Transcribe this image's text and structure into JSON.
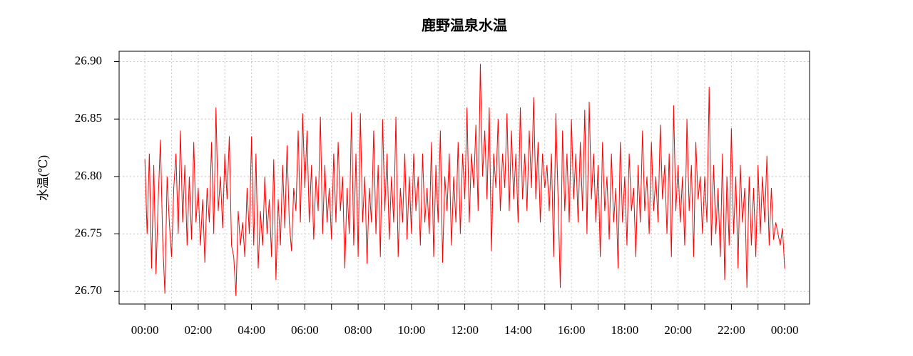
{
  "chart_data": {
    "type": "line",
    "title": "鹿野温泉水温",
    "ylabel": "水温(℃)",
    "color": "#ff0000",
    "grid": true,
    "xlim": [
      -58,
      1496
    ],
    "ylim": [
      26.689,
      26.909
    ],
    "xticks": [
      {
        "value": 0,
        "label": "00:00"
      },
      {
        "value": 120,
        "label": "02:00"
      },
      {
        "value": 240,
        "label": "04:00"
      },
      {
        "value": 360,
        "label": "06:00"
      },
      {
        "value": 480,
        "label": "08:00"
      },
      {
        "value": 600,
        "label": "10:00"
      },
      {
        "value": 720,
        "label": "12:00"
      },
      {
        "value": 840,
        "label": "14:00"
      },
      {
        "value": 960,
        "label": "16:00"
      },
      {
        "value": 1080,
        "label": "18:00"
      },
      {
        "value": 1200,
        "label": "20:00"
      },
      {
        "value": 1320,
        "label": "22:00"
      },
      {
        "value": 1440,
        "label": "00:00"
      }
    ],
    "xminor_ticks": [
      60,
      180,
      300,
      420,
      540,
      660,
      780,
      900,
      1020,
      1140,
      1260,
      1380
    ],
    "yticks": [
      {
        "value": 26.7,
        "label": "26.70"
      },
      {
        "value": 26.75,
        "label": "26.75"
      },
      {
        "value": 26.8,
        "label": "26.80"
      },
      {
        "value": 26.85,
        "label": "26.85"
      },
      {
        "value": 26.9,
        "label": "26.90"
      }
    ],
    "x": [
      0,
      5,
      10,
      15,
      20,
      25,
      30,
      35,
      40,
      45,
      50,
      55,
      60,
      65,
      70,
      75,
      80,
      85,
      90,
      95,
      100,
      105,
      110,
      115,
      120,
      125,
      130,
      135,
      140,
      145,
      150,
      155,
      160,
      165,
      170,
      175,
      180,
      185,
      190,
      195,
      200,
      205,
      210,
      215,
      220,
      225,
      230,
      235,
      240,
      245,
      250,
      255,
      260,
      265,
      270,
      275,
      280,
      285,
      290,
      295,
      300,
      305,
      310,
      315,
      320,
      325,
      330,
      335,
      340,
      345,
      350,
      355,
      360,
      365,
      370,
      375,
      380,
      385,
      390,
      395,
      400,
      405,
      410,
      415,
      420,
      425,
      430,
      435,
      440,
      445,
      450,
      455,
      460,
      465,
      470,
      475,
      480,
      485,
      490,
      495,
      500,
      505,
      510,
      515,
      520,
      525,
      530,
      535,
      540,
      545,
      550,
      555,
      560,
      565,
      570,
      575,
      580,
      585,
      590,
      595,
      600,
      605,
      610,
      615,
      620,
      625,
      630,
      635,
      640,
      645,
      650,
      655,
      660,
      665,
      670,
      675,
      680,
      685,
      690,
      695,
      700,
      705,
      710,
      715,
      720,
      725,
      730,
      735,
      740,
      745,
      750,
      755,
      760,
      765,
      770,
      775,
      780,
      785,
      790,
      795,
      800,
      805,
      810,
      815,
      820,
      825,
      830,
      835,
      840,
      845,
      850,
      855,
      860,
      865,
      870,
      875,
      880,
      885,
      890,
      895,
      900,
      905,
      910,
      915,
      920,
      925,
      930,
      935,
      940,
      945,
      950,
      955,
      960,
      965,
      970,
      975,
      980,
      985,
      990,
      995,
      1000,
      1005,
      1010,
      1015,
      1020,
      1025,
      1030,
      1035,
      1040,
      1045,
      1050,
      1055,
      1060,
      1065,
      1070,
      1075,
      1080,
      1085,
      1090,
      1095,
      1100,
      1105,
      1110,
      1115,
      1120,
      1125,
      1130,
      1135,
      1140,
      1145,
      1150,
      1155,
      1160,
      1165,
      1170,
      1175,
      1180,
      1185,
      1190,
      1195,
      1200,
      1205,
      1210,
      1215,
      1220,
      1225,
      1230,
      1235,
      1240,
      1245,
      1250,
      1255,
      1260,
      1265,
      1270,
      1275,
      1280,
      1285,
      1290,
      1295,
      1300,
      1305,
      1310,
      1315,
      1320,
      1325,
      1330,
      1335,
      1340,
      1345,
      1350,
      1355,
      1360,
      1365,
      1370,
      1375,
      1380,
      1385,
      1390,
      1395,
      1400,
      1405,
      1410,
      1415,
      1420,
      1425,
      1430,
      1435,
      1440
    ],
    "values": [
      26.815,
      26.75,
      26.82,
      26.72,
      26.81,
      26.715,
      26.78,
      26.832,
      26.745,
      26.698,
      26.8,
      26.76,
      26.73,
      26.79,
      26.82,
      26.75,
      26.84,
      26.76,
      26.81,
      26.74,
      26.8,
      26.745,
      26.83,
      26.76,
      26.79,
      26.74,
      26.78,
      26.725,
      26.79,
      26.76,
      26.83,
      26.75,
      26.86,
      26.77,
      26.8,
      26.755,
      26.82,
      26.78,
      26.835,
      26.74,
      26.73,
      26.696,
      26.77,
      26.74,
      26.76,
      26.73,
      26.79,
      26.75,
      26.835,
      26.74,
      26.82,
      26.72,
      26.77,
      26.74,
      26.8,
      26.75,
      26.78,
      26.73,
      26.815,
      26.71,
      26.78,
      26.74,
      26.81,
      26.755,
      26.827,
      26.76,
      26.735,
      26.79,
      26.77,
      26.84,
      26.76,
      26.855,
      26.79,
      26.84,
      26.76,
      26.81,
      26.745,
      26.8,
      26.77,
      26.852,
      26.75,
      26.81,
      26.76,
      26.79,
      26.745,
      26.82,
      26.76,
      26.83,
      26.77,
      26.8,
      26.72,
      26.79,
      26.75,
      26.856,
      26.74,
      26.82,
      26.73,
      26.855,
      26.76,
      26.8,
      26.724,
      26.79,
      26.76,
      26.84,
      26.75,
      26.81,
      26.73,
      26.85,
      26.77,
      26.82,
      26.745,
      26.8,
      26.76,
      26.852,
      26.73,
      26.79,
      26.76,
      26.82,
      26.745,
      26.8,
      26.75,
      26.82,
      26.77,
      26.8,
      26.74,
      26.82,
      26.76,
      26.79,
      26.75,
      26.83,
      26.73,
      26.81,
      26.76,
      26.84,
      26.725,
      26.8,
      26.77,
      26.82,
      26.74,
      26.8,
      26.76,
      26.83,
      26.75,
      26.82,
      26.78,
      26.86,
      26.76,
      26.82,
      26.79,
      26.845,
      26.77,
      26.898,
      26.8,
      26.84,
      26.78,
      26.86,
      26.735,
      26.82,
      26.79,
      26.85,
      26.77,
      26.82,
      26.79,
      26.855,
      26.77,
      26.84,
      26.78,
      26.82,
      26.76,
      26.86,
      26.78,
      26.82,
      26.77,
      26.84,
      26.79,
      26.869,
      26.78,
      26.83,
      26.76,
      26.82,
      26.79,
      26.81,
      26.77,
      26.82,
      26.73,
      26.855,
      26.78,
      26.703,
      26.84,
      26.77,
      26.82,
      26.76,
      26.85,
      26.78,
      26.82,
      26.76,
      26.83,
      26.77,
      26.858,
      26.75,
      26.865,
      26.78,
      26.82,
      26.76,
      26.81,
      26.73,
      26.83,
      26.77,
      26.8,
      26.745,
      26.82,
      26.76,
      26.79,
      26.72,
      26.83,
      26.76,
      26.8,
      26.74,
      26.82,
      26.77,
      26.79,
      26.73,
      26.81,
      26.76,
      26.84,
      26.77,
      26.8,
      26.75,
      26.83,
      26.77,
      26.8,
      26.76,
      26.845,
      26.78,
      26.81,
      26.75,
      26.82,
      26.73,
      26.862,
      26.77,
      26.81,
      26.76,
      26.8,
      26.74,
      26.85,
      26.77,
      26.81,
      26.73,
      26.83,
      26.78,
      26.8,
      26.75,
      26.8,
      26.76,
      26.878,
      26.74,
      26.81,
      26.75,
      26.79,
      26.73,
      26.82,
      26.71,
      26.8,
      26.74,
      26.842,
      26.75,
      26.8,
      26.72,
      26.81,
      26.76,
      26.79,
      26.703,
      26.8,
      26.74,
      26.79,
      26.73,
      26.81,
      26.75,
      26.8,
      26.76,
      26.818,
      26.74,
      26.79,
      26.745,
      26.76,
      26.75,
      26.74,
      26.755,
      26.72
    ]
  }
}
